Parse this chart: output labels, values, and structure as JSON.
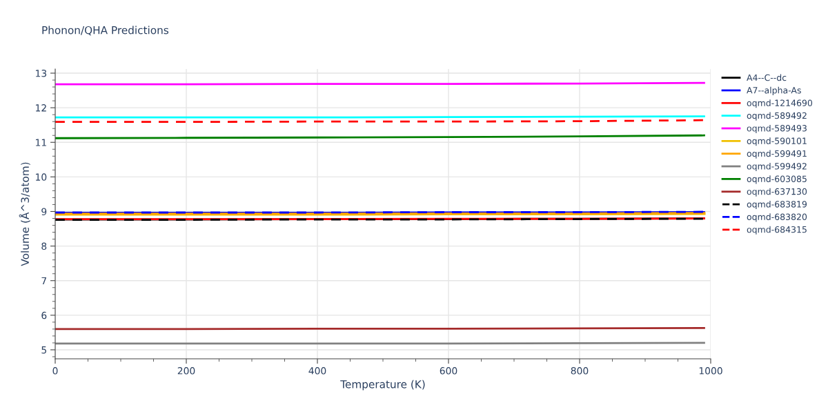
{
  "chart_data": {
    "type": "line",
    "title": "Phonon/QHA Predictions",
    "xlabel": "Temperature (K)",
    "ylabel": "Volume (Å^3/atom)",
    "x": [
      0,
      200,
      400,
      600,
      800,
      990
    ],
    "series": [
      {
        "name": "A4--C--dc",
        "color": "#000000",
        "line_style": "solid",
        "values": [
          8.77,
          8.77,
          8.78,
          8.78,
          8.79,
          8.8
        ]
      },
      {
        "name": "A7--alpha-As",
        "color": "#0000ff",
        "line_style": "solid",
        "values": [
          8.96,
          8.96,
          8.96,
          8.97,
          8.97,
          8.98
        ]
      },
      {
        "name": "oqmd-1214690",
        "color": "#ff0000",
        "line_style": "solid",
        "values": [
          8.78,
          8.78,
          8.78,
          8.79,
          8.79,
          8.8
        ]
      },
      {
        "name": "oqmd-589492",
        "color": "#00ffff",
        "line_style": "solid",
        "values": [
          11.72,
          11.72,
          11.72,
          11.73,
          11.74,
          11.75
        ]
      },
      {
        "name": "oqmd-589493",
        "color": "#ff00ff",
        "line_style": "solid",
        "values": [
          12.68,
          12.68,
          12.69,
          12.69,
          12.7,
          12.72
        ]
      },
      {
        "name": "oqmd-590101",
        "color": "#f0c000",
        "line_style": "solid",
        "values": [
          8.92,
          8.92,
          8.92,
          8.93,
          8.93,
          8.94
        ]
      },
      {
        "name": "oqmd-599491",
        "color": "#ffa500",
        "line_style": "solid",
        "values": [
          8.93,
          8.93,
          8.93,
          8.94,
          8.94,
          8.95
        ]
      },
      {
        "name": "oqmd-599492",
        "color": "#808080",
        "line_style": "solid",
        "values": [
          5.18,
          5.18,
          5.18,
          5.18,
          5.19,
          5.2
        ]
      },
      {
        "name": "oqmd-603085",
        "color": "#008000",
        "line_style": "solid",
        "values": [
          11.12,
          11.13,
          11.14,
          11.15,
          11.17,
          11.2
        ]
      },
      {
        "name": "oqmd-637130",
        "color": "#a52a2a",
        "line_style": "solid",
        "values": [
          5.6,
          5.6,
          5.61,
          5.61,
          5.62,
          5.63
        ]
      },
      {
        "name": "oqmd-683819",
        "color": "#000000",
        "line_style": "dashed",
        "values": [
          8.76,
          8.76,
          8.77,
          8.77,
          8.78,
          8.79
        ]
      },
      {
        "name": "oqmd-683820",
        "color": "#0000ff",
        "line_style": "dashed",
        "values": [
          8.97,
          8.97,
          8.97,
          8.98,
          8.98,
          8.99
        ]
      },
      {
        "name": "oqmd-684315",
        "color": "#ff0000",
        "line_style": "dashed",
        "values": [
          11.59,
          11.59,
          11.6,
          11.6,
          11.61,
          11.64
        ]
      }
    ],
    "xlim": [
      0,
      1000
    ],
    "xticks": [
      0,
      {
        "value": 50,
        "label": null
      },
      {
        "value": 100,
        "label": null
      },
      {
        "value": 150,
        "label": null
      },
      200,
      {
        "value": 250,
        "label": null
      },
      {
        "value": 300,
        "label": null
      },
      {
        "value": 350,
        "label": null
      },
      400,
      {
        "value": 450,
        "label": null
      },
      {
        "value": 500,
        "label": null
      },
      {
        "value": 550,
        "label": null
      },
      600,
      {
        "value": 650,
        "label": null
      },
      {
        "value": 700,
        "label": null
      },
      {
        "value": 750,
        "label": null
      },
      800,
      {
        "value": 850,
        "label": null
      },
      {
        "value": 900,
        "label": null
      },
      {
        "value": 950,
        "label": null
      },
      1000
    ],
    "ylim": [
      4.74,
      13.12
    ],
    "yticks": [
      {
        "value": 4.8,
        "label": null
      },
      5,
      {
        "value": 5.2,
        "label": null
      },
      {
        "value": 5.4,
        "label": null
      },
      {
        "value": 5.6,
        "label": null
      },
      {
        "value": 5.8,
        "label": null
      },
      6,
      {
        "value": 6.2,
        "label": null
      },
      {
        "value": 6.4,
        "label": null
      },
      {
        "value": 6.6,
        "label": null
      },
      {
        "value": 6.8,
        "label": null
      },
      7,
      {
        "value": 7.2,
        "label": null
      },
      {
        "value": 7.4,
        "label": null
      },
      {
        "value": 7.6,
        "label": null
      },
      {
        "value": 7.8,
        "label": null
      },
      8,
      {
        "value": 8.2,
        "label": null
      },
      {
        "value": 8.4,
        "label": null
      },
      {
        "value": 8.6,
        "label": null
      },
      {
        "value": 8.8,
        "label": null
      },
      9,
      {
        "value": 9.2,
        "label": null
      },
      {
        "value": 9.4,
        "label": null
      },
      {
        "value": 9.6,
        "label": null
      },
      {
        "value": 9.8,
        "label": null
      },
      10,
      {
        "value": 10.2,
        "label": null
      },
      {
        "value": 10.4,
        "label": null
      },
      {
        "value": 10.6,
        "label": null
      },
      {
        "value": 10.8,
        "label": null
      },
      11,
      {
        "value": 11.2,
        "label": null
      },
      {
        "value": 11.4,
        "label": null
      },
      {
        "value": 11.6,
        "label": null
      },
      {
        "value": 11.8,
        "label": null
      },
      12,
      {
        "value": 12.2,
        "label": null
      },
      {
        "value": 12.4,
        "label": null
      },
      {
        "value": 12.6,
        "label": null
      },
      {
        "value": 12.8,
        "label": null
      },
      13
    ],
    "grid": true,
    "legend": "top right",
    "marker": "none"
  }
}
